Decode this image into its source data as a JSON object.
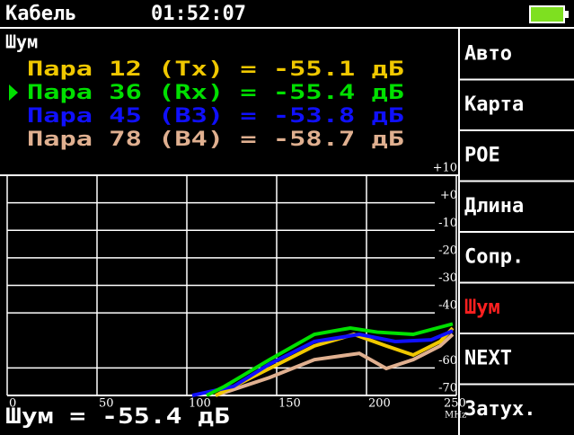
{
  "header": {
    "title": "Кабель",
    "time": "01:52:07"
  },
  "section": "Шум",
  "pairs": [
    {
      "text": "Пара 12 (Tx) = -55.1 дБ",
      "color": "#f0c800"
    },
    {
      "text": "Пара 36 (Rx) = -55.4 дБ",
      "color": "#00e000"
    },
    {
      "text": "Пара 45 (B3) = -53.8 дБ",
      "color": "#1010ff"
    },
    {
      "text": "Пара 78 (B4) = -58.7 дБ",
      "color": "#e0b090"
    }
  ],
  "menu": [
    "Авто",
    "Карта",
    "POE",
    "Длина",
    "Сопр.",
    "Шум",
    "NEXT",
    "Затух."
  ],
  "menu_active": 5,
  "footer": "Шум = -55.4 дБ",
  "chart": {
    "type": "line",
    "xlim": [
      0,
      250
    ],
    "xticks": [
      0,
      50,
      100,
      150,
      200,
      250
    ],
    "x_unit": "MHz",
    "ylim": [
      -70,
      10
    ],
    "yticks": [
      {
        "value": 10,
        "label": "+10"
      },
      {
        "value": 0,
        "label": "+0"
      },
      -10,
      -20,
      -30,
      -40,
      -60,
      -70
    ],
    "series": [
      {
        "color": "#e0b090",
        "x": [
          116,
          146,
          171,
          196,
          211,
          226,
          241,
          248
        ],
        "values": [
          -70,
          -63.5,
          -57,
          -54.7,
          -60.2,
          -57,
          -52,
          -47.8
        ]
      },
      {
        "color": "#f0c800",
        "x": [
          116,
          146,
          171,
          193,
          211,
          226,
          241,
          248
        ],
        "values": [
          -70,
          -60.2,
          -52,
          -47.8,
          -52,
          -55.3,
          -50.4,
          -45.5
        ]
      },
      {
        "color": "#1010ff",
        "x": [
          103,
          126,
          146,
          171,
          196,
          216,
          236,
          248
        ],
        "values": [
          -70,
          -66.7,
          -58.6,
          -50.4,
          -47.8,
          -50.4,
          -49.8,
          -46.5
        ]
      },
      {
        "color": "#00e000",
        "x": [
          111,
          121,
          146,
          171,
          191,
          206,
          226,
          248
        ],
        "values": [
          -70,
          -66.7,
          -57,
          -47.8,
          -45.5,
          -47,
          -47.8,
          -44
        ]
      }
    ]
  }
}
